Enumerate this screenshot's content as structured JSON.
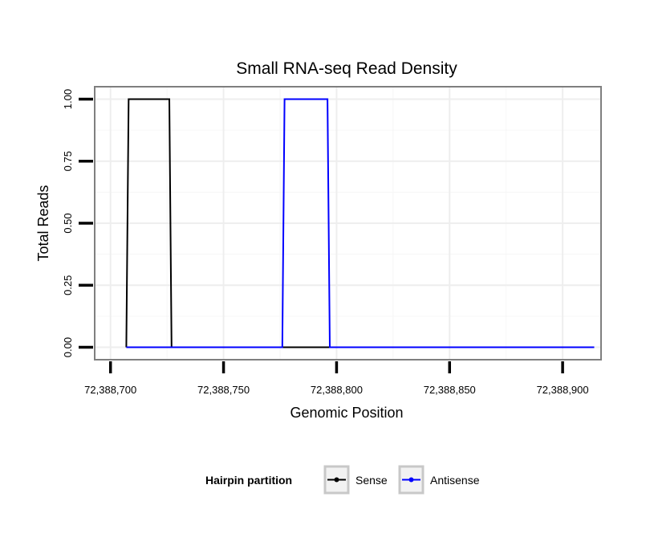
{
  "chart_data": {
    "type": "line",
    "title": "Small RNA-seq Read Density",
    "xlabel": "Genomic Position",
    "ylabel": "Total Reads",
    "xlim": [
      72388693,
      72388917
    ],
    "ylim": [
      -0.05,
      1.05
    ],
    "x_ticks": [
      72388700,
      72388750,
      72388800,
      72388850,
      72388900
    ],
    "x_tick_labels": [
      "72,388,700",
      "72,388,750",
      "72,388,800",
      "72,388,850",
      "72,388,900"
    ],
    "y_ticks": [
      0,
      0.25,
      0.5,
      0.75,
      1.0
    ],
    "y_tick_labels": [
      "0.00",
      "0.25",
      "0.50",
      "0.75",
      "1.00"
    ],
    "grid": true,
    "legend": {
      "title": "Hairpin partition",
      "position": "bottom",
      "entries": [
        "Sense",
        "Antisense"
      ]
    },
    "series": [
      {
        "name": "Sense",
        "color": "#000000",
        "x": [
          72388707,
          72388708,
          72388726,
          72388727,
          72388914
        ],
        "y": [
          0,
          1,
          1,
          0,
          0
        ]
      },
      {
        "name": "Antisense",
        "color": "#0000ff",
        "x": [
          72388707,
          72388727,
          72388776,
          72388777,
          72388796,
          72388797,
          72388914
        ],
        "y": [
          0,
          0,
          0,
          1,
          1,
          0,
          0
        ]
      }
    ]
  }
}
